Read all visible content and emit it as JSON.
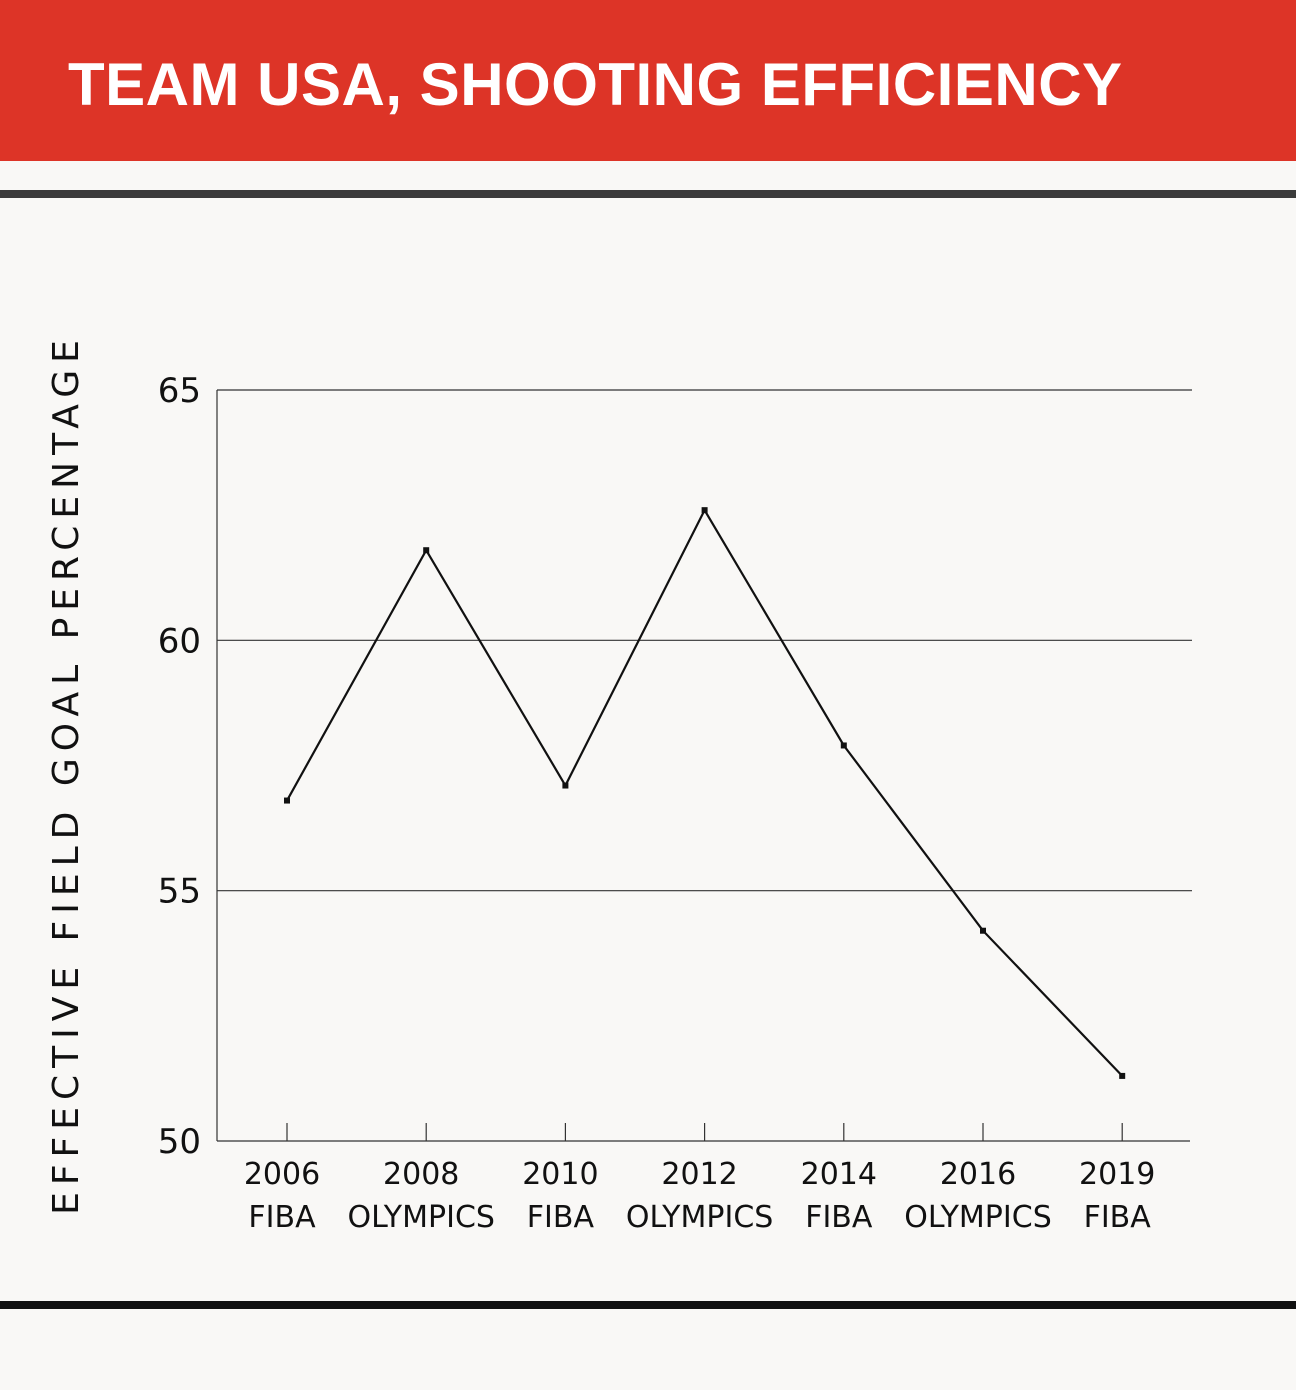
{
  "header": {
    "title": "TEAM USA, SHOOTING EFFICIENCY"
  },
  "colors": {
    "banner": "#dd3427",
    "background": "#f9f8f6",
    "line": "#111111"
  },
  "chart_data": {
    "type": "line",
    "title": "TEAM USA, SHOOTING EFFICIENCY",
    "ylabel": "EFFECTIVE FIELD GOAL PERCENTAGE",
    "xlabel": "",
    "ylim": [
      50,
      65
    ],
    "yticks": [
      50,
      55,
      60,
      65
    ],
    "grid": "horizontal",
    "categories": [
      [
        "2006",
        "FIBA"
      ],
      [
        "2008",
        "OLYMPICS"
      ],
      [
        "2010",
        "FIBA"
      ],
      [
        "2012",
        "OLYMPICS"
      ],
      [
        "2014",
        "FIBA"
      ],
      [
        "2016",
        "OLYMPICS"
      ],
      [
        "2019",
        "FIBA"
      ]
    ],
    "series": [
      {
        "values": [
          56.8,
          61.8,
          57.1,
          62.6,
          57.9,
          54.2,
          51.3
        ]
      }
    ]
  }
}
